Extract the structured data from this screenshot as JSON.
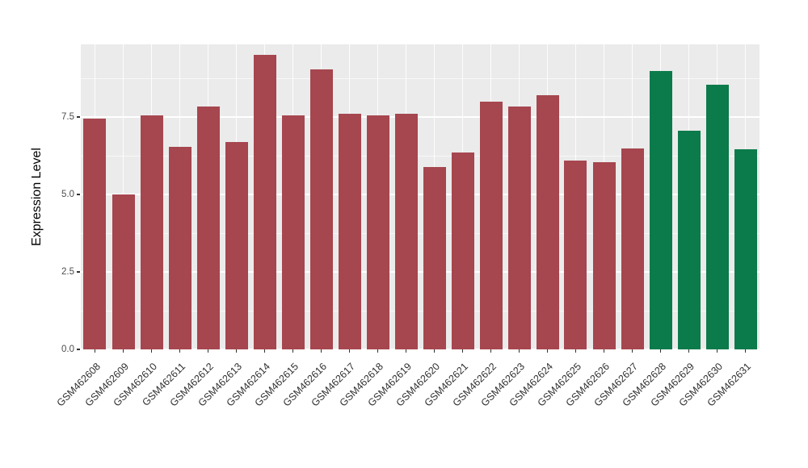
{
  "chart_data": {
    "type": "bar",
    "title": "",
    "xlabel": "",
    "ylabel": "Expression Level",
    "ylim": [
      0,
      9.85
    ],
    "yticks": [
      0,
      2.5,
      5,
      7.5
    ],
    "ytick_labels": [
      "0.0",
      "2.5",
      "5.0",
      "7.5"
    ],
    "minor_gridlines": [
      1.25,
      3.75,
      6.25,
      8.75
    ],
    "grid": "on",
    "legend": "none",
    "panel_background": "#EBEBEB",
    "gridline_color": "#FFFFFF",
    "categories": [
      "GSM462608",
      "GSM462609",
      "GSM462610",
      "GSM462611",
      "GSM462612",
      "GSM462613",
      "GSM462614",
      "GSM462615",
      "GSM462616",
      "GSM462617",
      "GSM462618",
      "GSM462619",
      "GSM462620",
      "GSM462621",
      "GSM462622",
      "GSM462623",
      "GSM462624",
      "GSM462625",
      "GSM462626",
      "GSM462627",
      "GSM462628",
      "GSM462629",
      "GSM462630",
      "GSM462631"
    ],
    "values": [
      7.45,
      5.0,
      7.55,
      6.55,
      7.85,
      6.7,
      9.5,
      7.55,
      9.05,
      7.6,
      7.55,
      7.6,
      5.9,
      6.35,
      8.0,
      7.85,
      8.2,
      6.1,
      6.05,
      6.5,
      9.0,
      7.05,
      8.55,
      6.45
    ],
    "groups": [
      "group1",
      "group1",
      "group1",
      "group1",
      "group1",
      "group1",
      "group1",
      "group1",
      "group1",
      "group1",
      "group1",
      "group1",
      "group1",
      "group1",
      "group1",
      "group1",
      "group1",
      "group1",
      "group1",
      "group1",
      "group2",
      "group2",
      "group2",
      "group2"
    ],
    "group_colors": {
      "group1": "#A6464F",
      "group2": "#0B7B4B"
    }
  }
}
